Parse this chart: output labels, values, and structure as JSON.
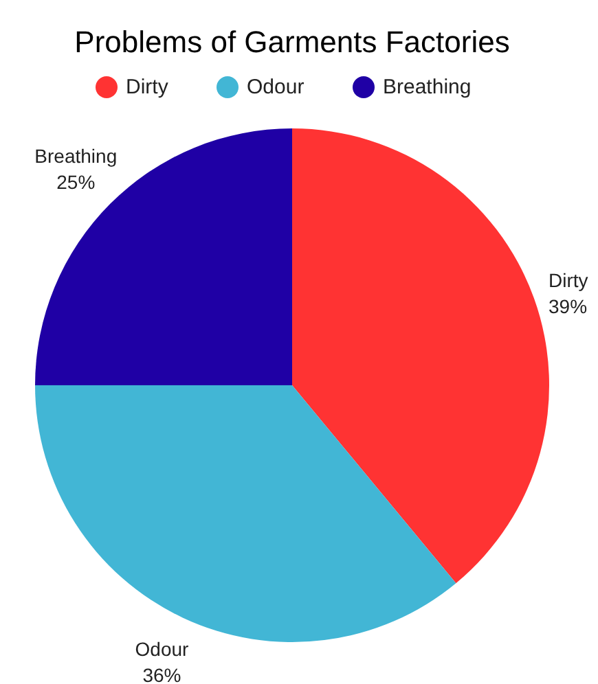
{
  "chart_data": {
    "type": "pie",
    "title": "Problems of Garments Factories",
    "categories": [
      "Dirty",
      "Odour",
      "Breathing"
    ],
    "values": [
      39,
      36,
      25
    ],
    "value_labels": [
      "39%",
      "36%",
      "25%"
    ],
    "colors": [
      "#ff3333",
      "#42b6d5",
      "#1f00a5"
    ],
    "legend": "top"
  }
}
